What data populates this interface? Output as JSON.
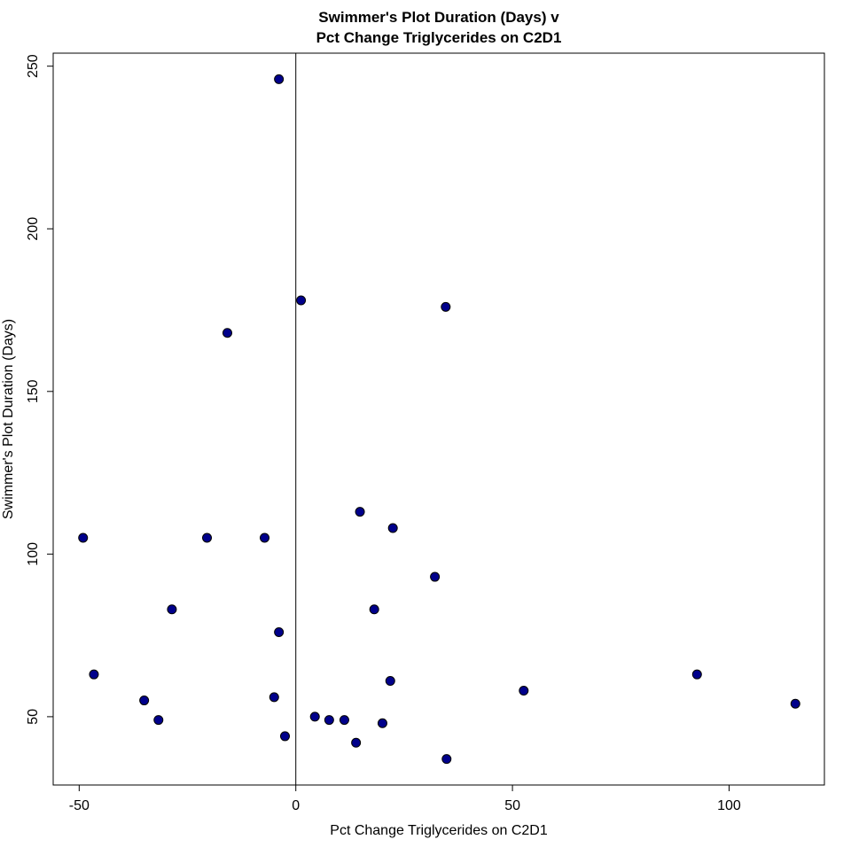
{
  "chart_data": {
    "type": "scatter",
    "title": [
      "Swimmer's Plot Duration (Days) v",
      "Pct Change Triglycerides on C2D1"
    ],
    "xlabel": "Pct Change Triglycerides on C2D1",
    "ylabel": "Swimmer's Plot Duration (Days)",
    "xlim": [
      -56,
      122
    ],
    "ylim": [
      29,
      254
    ],
    "xticks": [
      -50,
      0,
      50,
      100
    ],
    "yticks": [
      50,
      100,
      150,
      200,
      250
    ],
    "xtick_labels": [
      "-50",
      "0",
      "50",
      "100"
    ],
    "ytick_labels": [
      "50",
      "100",
      "150",
      "200",
      "250"
    ],
    "reference_line_x": 0,
    "grid": false,
    "marker_color": "#00008B",
    "marker_edge": "#000000",
    "points": [
      {
        "x": -49.1,
        "y": 105
      },
      {
        "x": -46.6,
        "y": 63
      },
      {
        "x": -35.0,
        "y": 55
      },
      {
        "x": -31.7,
        "y": 49
      },
      {
        "x": -28.6,
        "y": 83
      },
      {
        "x": -20.5,
        "y": 105
      },
      {
        "x": -15.8,
        "y": 168
      },
      {
        "x": -7.2,
        "y": 105
      },
      {
        "x": -5.0,
        "y": 56
      },
      {
        "x": -3.9,
        "y": 246
      },
      {
        "x": -3.9,
        "y": 76
      },
      {
        "x": -2.5,
        "y": 44
      },
      {
        "x": 1.2,
        "y": 178
      },
      {
        "x": 4.4,
        "y": 50
      },
      {
        "x": 7.7,
        "y": 49
      },
      {
        "x": 11.2,
        "y": 49
      },
      {
        "x": 13.9,
        "y": 42
      },
      {
        "x": 14.8,
        "y": 113
      },
      {
        "x": 18.1,
        "y": 83
      },
      {
        "x": 20.0,
        "y": 48
      },
      {
        "x": 21.8,
        "y": 61
      },
      {
        "x": 22.4,
        "y": 108
      },
      {
        "x": 32.1,
        "y": 93
      },
      {
        "x": 34.6,
        "y": 176
      },
      {
        "x": 34.8,
        "y": 37
      },
      {
        "x": 52.6,
        "y": 58
      },
      {
        "x": 92.6,
        "y": 63
      },
      {
        "x": 115.3,
        "y": 54
      }
    ]
  }
}
